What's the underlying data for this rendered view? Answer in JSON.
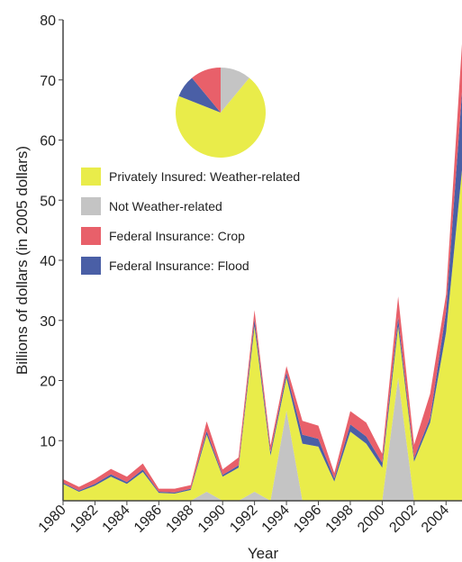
{
  "chart_data": {
    "type": "area",
    "stacked": true,
    "title": "",
    "xlabel": "Year",
    "ylabel": "Billions of dollars (in 2005 dollars)",
    "ylim": [
      0,
      80
    ],
    "xlim": [
      1980,
      2005
    ],
    "yticks": [
      10,
      20,
      30,
      40,
      50,
      60,
      70,
      80
    ],
    "xticks": [
      "1980",
      "1982",
      "1984",
      "1986",
      "1988",
      "1990",
      "1992",
      "1994",
      "1996",
      "1998",
      "2000",
      "2002",
      "2004"
    ],
    "grid": false,
    "legend_position": "upper-left",
    "x": [
      1980,
      1981,
      1982,
      1983,
      1984,
      1985,
      1986,
      1987,
      1988,
      1989,
      1990,
      1991,
      1992,
      1993,
      1994,
      1995,
      1996,
      1997,
      1998,
      1999,
      2000,
      2001,
      2002,
      2003,
      2004,
      2005
    ],
    "series": [
      {
        "name": "Not Weather-related",
        "color": "#c4c4c4",
        "values": [
          0,
          0,
          0,
          0,
          0,
          0,
          0,
          0,
          0,
          1.5,
          0,
          0,
          1.5,
          0,
          15,
          0,
          0,
          0,
          0,
          0,
          0,
          20.5,
          0,
          0,
          0,
          0
        ]
      },
      {
        "name": "Privately Insured: Weather-related",
        "color": "#e9ec4a",
        "values": [
          2.8,
          1.5,
          2.5,
          4,
          2.8,
          4.8,
          1.3,
          1.2,
          1.8,
          9.5,
          4,
          5.5,
          27.5,
          7.5,
          5.5,
          9.5,
          9,
          3.2,
          11.5,
          9.5,
          5.5,
          8.5,
          6.5,
          13,
          28,
          55
        ]
      },
      {
        "name": "Federal Insurance: Flood",
        "color": "#4a5fa6",
        "values": [
          0.2,
          0.2,
          0.3,
          0.4,
          0.3,
          0.4,
          0.2,
          0.2,
          0.2,
          0.6,
          0.3,
          0.4,
          1.2,
          0.6,
          0.8,
          1.5,
          1.3,
          0.5,
          1.2,
          1.2,
          0.8,
          1.5,
          0.6,
          0.8,
          3.5,
          13
        ]
      },
      {
        "name": "Federal Insurance: Crop",
        "color": "#e8606a",
        "values": [
          0.6,
          0.6,
          0.8,
          0.9,
          0.9,
          1,
          0.5,
          0.6,
          0.6,
          1.6,
          0.9,
          1.3,
          1.5,
          1.1,
          1.1,
          2.3,
          2.2,
          0.9,
          2.2,
          2.3,
          1.5,
          3.5,
          2.2,
          4,
          2.8,
          8
        ]
      }
    ],
    "pie": {
      "slices": [
        {
          "name": "Privately Insured: Weather-related",
          "value": 70,
          "color": "#e9ec4a"
        },
        {
          "name": "Not Weather-related",
          "value": 11,
          "color": "#c4c4c4"
        },
        {
          "name": "Federal Insurance: Crop",
          "value": 11,
          "color": "#e8606a"
        },
        {
          "name": "Federal Insurance: Flood",
          "value": 8,
          "color": "#4a5fa6"
        }
      ]
    },
    "legend": [
      {
        "label": "Privately Insured: Weather-related",
        "color": "#e9ec4a"
      },
      {
        "label": "Not Weather-related",
        "color": "#c4c4c4"
      },
      {
        "label": "Federal Insurance: Crop",
        "color": "#e8606a"
      },
      {
        "label": "Federal Insurance: Flood",
        "color": "#4a5fa6"
      }
    ]
  }
}
